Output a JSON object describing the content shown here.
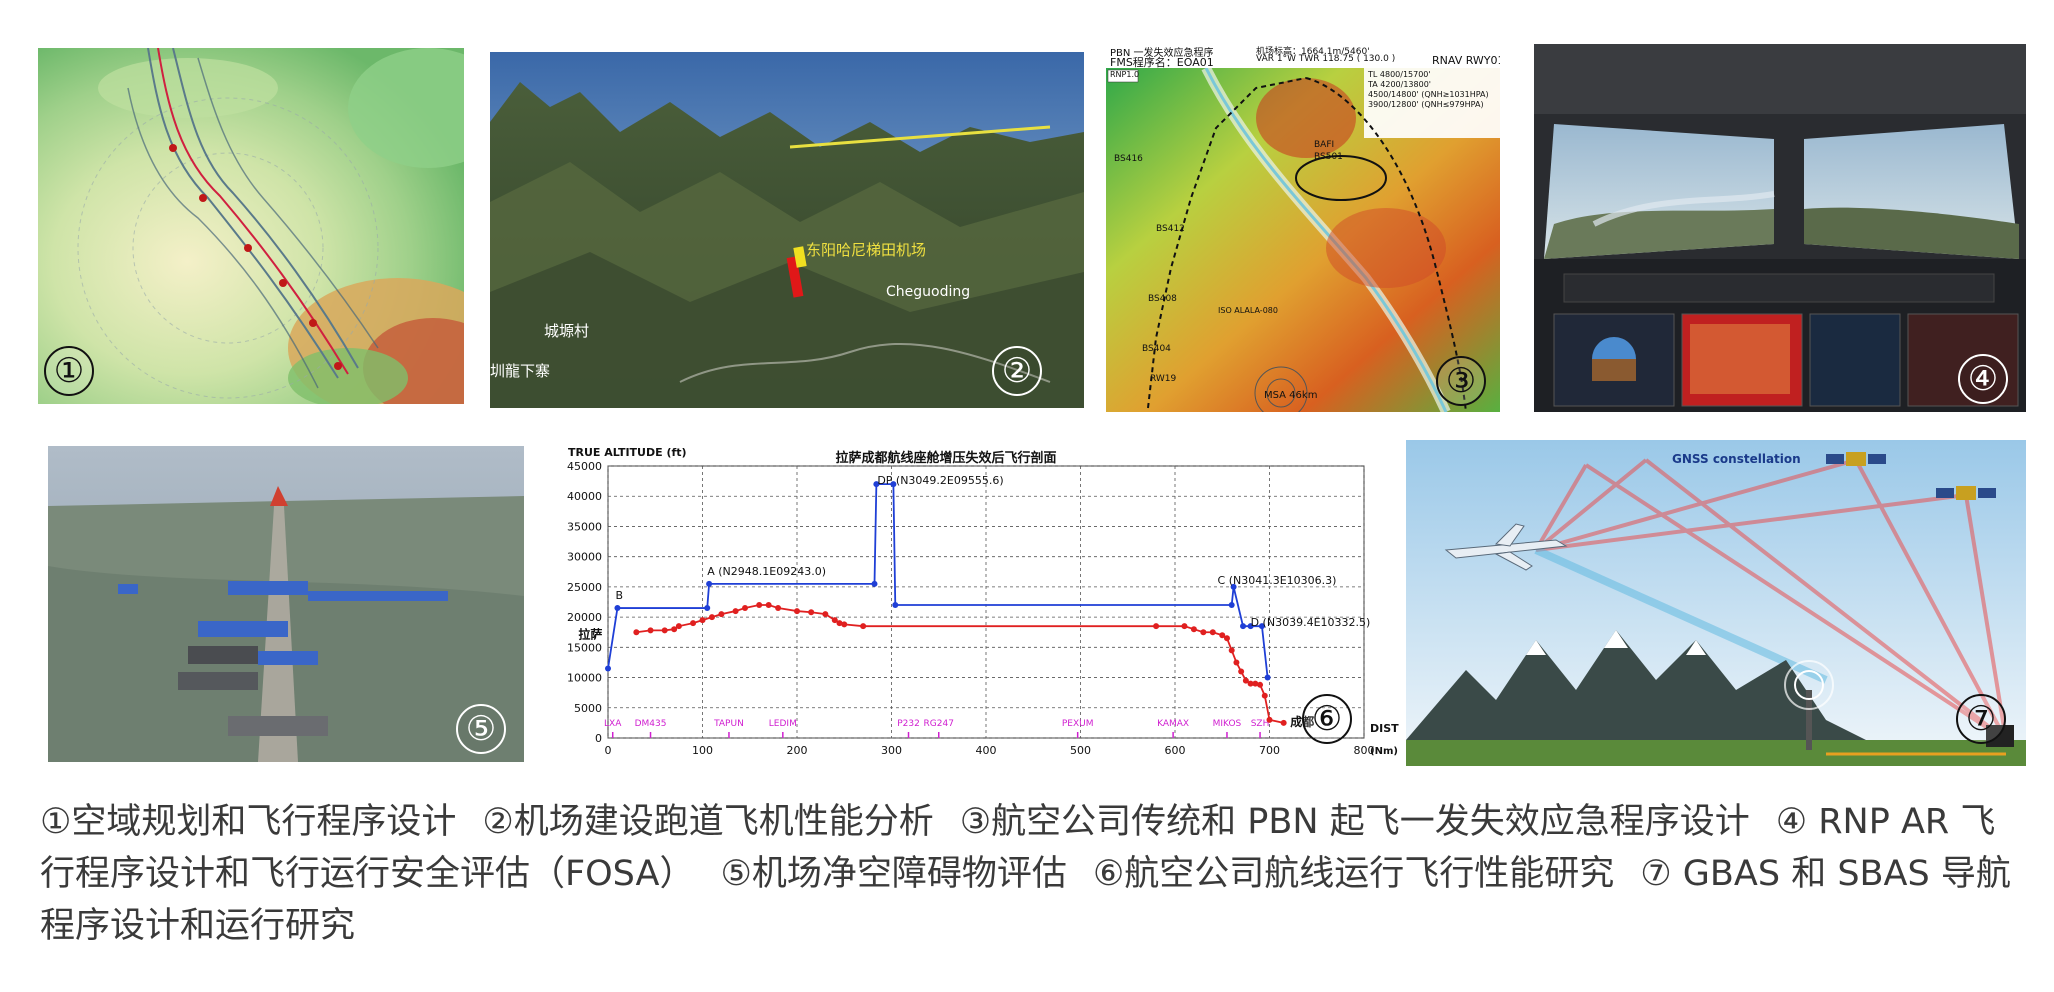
{
  "panels": {
    "p1": {
      "num": "①"
    },
    "p2": {
      "num": "②",
      "place1": "东阳哈尼梯田机场",
      "place2": "Cheguoding",
      "place3": "城塬村",
      "place4": "圳龍下寨"
    },
    "p3": {
      "num": "③",
      "hdr1": "PBN 一发失效应急程序",
      "hdr2": "FMS程序名：EOA01",
      "hdr3": "机场标高：1664.1m/5460'",
      "hdr4": "VAR 1°W   TWR 118.75 ( 130.0 )",
      "hdr5": "RNAV RWY01",
      "note": [
        "TL 4800/15700'",
        "TA 4200/13800'",
        "4500/14800' (QNH≥1031HPA)",
        "3900/12800' (QNH≤979HPA)"
      ],
      "rnp": "RNP1.0",
      "wp1": "BS416",
      "wp2": "BS412",
      "wp3": "BS408",
      "wp4": "BS404",
      "wp5": "BS501",
      "wp6": "BAFI",
      "rwy": "RW19",
      "msa": "MSA 46km",
      "wpx": "ISO ALALA-080"
    },
    "p4": {
      "num": "④"
    },
    "p5": {
      "num": "⑤"
    },
    "p7": {
      "num": "⑦",
      "gnss": "GNSS constellation"
    }
  },
  "chart_data": {
    "type": "line",
    "title": "拉萨成都航线座舱增压失效后飞行剖面",
    "ylabel": "TRUE ALTITUDE (ft)",
    "xlabel": "DIST (Nm)",
    "num": "⑥",
    "ylim": [
      0,
      45000
    ],
    "xlim": [
      0,
      800
    ],
    "yticks": [
      0,
      5000,
      10000,
      15000,
      20000,
      25000,
      30000,
      35000,
      40000,
      45000
    ],
    "xticks": [
      0,
      100,
      200,
      300,
      400,
      500,
      600,
      700,
      800
    ],
    "waypoints": [
      {
        "name": "LXA",
        "x": 5
      },
      {
        "name": "DM435",
        "x": 45
      },
      {
        "name": "TAPUN",
        "x": 128
      },
      {
        "name": "LEDIM",
        "x": 185
      },
      {
        "name": "P232",
        "x": 318
      },
      {
        "name": "RG247",
        "x": 350
      },
      {
        "name": "PEXUM",
        "x": 497
      },
      {
        "name": "KAMAX",
        "x": 598
      },
      {
        "name": "MIKOS",
        "x": 655
      },
      {
        "name": "SZH",
        "x": 690
      }
    ],
    "start_label": "拉萨",
    "end_label": "成都",
    "annotations": [
      {
        "text": "B",
        "x": 8,
        "y": 23000
      },
      {
        "text": "A (N2948.1E09243.0)",
        "x": 105,
        "y": 27000
      },
      {
        "text": "DP (N3049.2E09555.6)",
        "x": 285,
        "y": 42000
      },
      {
        "text": "C (N3041.3E10306.3)",
        "x": 645,
        "y": 25500
      },
      {
        "text": "D (N3039.4E10332.5)",
        "x": 680,
        "y": 18500
      }
    ],
    "series": [
      {
        "color": "#1f3fd6",
        "x": [
          0,
          10,
          105,
          107,
          282,
          284,
          302,
          304,
          660,
          662,
          672,
          680,
          692,
          698
        ],
        "y": [
          11500,
          21500,
          21500,
          25500,
          25500,
          42000,
          42000,
          22000,
          22000,
          25000,
          18500,
          18500,
          18500,
          10000
        ]
      },
      {
        "color": "#e02020",
        "x": [
          30,
          45,
          60,
          70,
          75,
          90,
          100,
          110,
          120,
          135,
          145,
          160,
          170,
          180,
          200,
          215,
          230,
          240,
          245,
          250,
          270,
          580,
          610,
          620,
          630,
          640,
          650,
          655,
          660,
          665,
          670,
          675,
          680,
          685,
          690,
          695,
          700,
          715
        ],
        "y": [
          17500,
          17800,
          17800,
          18000,
          18500,
          19000,
          19500,
          20000,
          20500,
          21000,
          21500,
          22000,
          22000,
          21500,
          21000,
          20800,
          20500,
          19500,
          19000,
          18800,
          18500,
          18500,
          18500,
          18000,
          17500,
          17500,
          17000,
          16500,
          14500,
          12500,
          11000,
          9500,
          9000,
          9000,
          8800,
          7000,
          3000,
          2500
        ]
      }
    ]
  },
  "caption": [
    "①空域规划和飞行程序设计",
    "②机场建设跑道飞机性能分析",
    "③航空公司传统和 PBN 起飞一发失效应急程序设计",
    "④ RNP AR 飞行程序设计和飞行运行安全评估（FOSA）",
    "⑤机场净空障碍物评估",
    "⑥航空公司航线运行飞行性能研究",
    "⑦ GBAS 和 SBAS 导航程序设计和运行研究"
  ]
}
